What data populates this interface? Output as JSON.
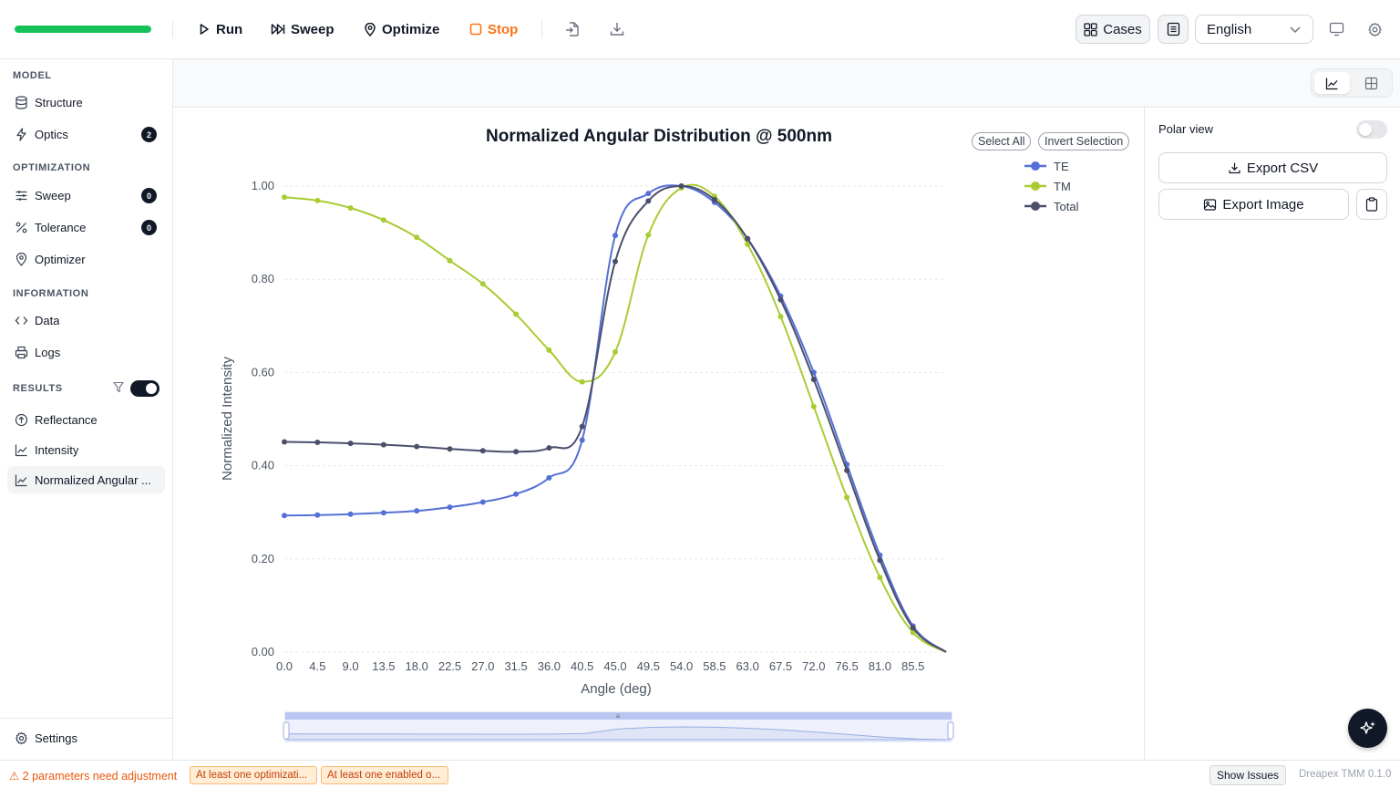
{
  "toolbar": {
    "progress": 1.0,
    "run": "Run",
    "sweep": "Sweep",
    "optimize": "Optimize",
    "stop": "Stop",
    "cases": "Cases",
    "language": "English",
    "stop_color": "#f97316",
    "progress_color": "#16c15a"
  },
  "sidebar": {
    "model_header": "MODEL",
    "structure": "Structure",
    "optics": "Optics",
    "optics_count": "2",
    "optimization_header": "OPTIMIZATION",
    "sweep": "Sweep",
    "sweep_count": "0",
    "tolerance": "Tolerance",
    "tolerance_count": "0",
    "optimizer": "Optimizer",
    "information_header": "INFORMATION",
    "data": "Data",
    "logs": "Logs",
    "results_header": "RESULTS",
    "results_toggle_on": true,
    "reflectance": "Reflectance",
    "intensity": "Intensity",
    "normalized": "Normalized Angular ...",
    "settings": "Settings"
  },
  "panel": {
    "polar_view": "Polar view",
    "polar_on": false,
    "export_csv": "Export CSV",
    "export_image": "Export Image"
  },
  "chart_controls": {
    "select_all": "Select All",
    "invert_selection": "Invert Selection"
  },
  "status": {
    "warning": "⚠ 2 parameters need adjustment",
    "chip1": "At least one optimizati...",
    "chip2": "At least one enabled o...",
    "show_issues": "Show Issues",
    "version": "Dreapex TMM 0.1.0"
  },
  "chart_data": {
    "type": "line",
    "title": "Normalized Angular Distribution @ 500nm",
    "xlabel": "Angle (deg)",
    "ylabel": "Normalized Intensity",
    "xlim": [
      0,
      90
    ],
    "ylim": [
      0,
      1
    ],
    "grid": true,
    "legend_position": "top-right",
    "x_ticks": [
      "0.0",
      "4.5",
      "9.0",
      "13.5",
      "18.0",
      "22.5",
      "27.0",
      "31.5",
      "36.0",
      "40.5",
      "45.0",
      "49.5",
      "54.0",
      "58.5",
      "63.0",
      "67.5",
      "72.0",
      "76.5",
      "81.0",
      "85.5"
    ],
    "y_ticks": [
      "0.00",
      "0.20",
      "0.40",
      "0.60",
      "0.80",
      "1.00"
    ],
    "x": [
      0,
      4.5,
      9,
      13.5,
      18,
      22.5,
      27,
      31.5,
      36,
      40.5,
      45,
      49.5,
      54,
      58.5,
      63,
      67.5,
      72,
      76.5,
      81,
      85.5,
      90
    ],
    "series": [
      {
        "name": "TE",
        "color": "#5470d6",
        "values": [
          0.293,
          0.294,
          0.296,
          0.299,
          0.303,
          0.311,
          0.322,
          0.339,
          0.374,
          0.455,
          0.894,
          0.984,
          1.0,
          0.965,
          0.887,
          0.764,
          0.6,
          0.403,
          0.208,
          0.056,
          0.0
        ]
      },
      {
        "name": "TM",
        "color": "#a9cc33",
        "values": [
          0.976,
          0.969,
          0.953,
          0.927,
          0.89,
          0.84,
          0.79,
          0.725,
          0.648,
          0.58,
          0.644,
          0.895,
          0.996,
          0.978,
          0.875,
          0.72,
          0.527,
          0.332,
          0.16,
          0.042,
          0.0
        ]
      },
      {
        "name": "Total",
        "color": "#4b4f6b",
        "values": [
          0.451,
          0.45,
          0.448,
          0.445,
          0.441,
          0.436,
          0.432,
          0.43,
          0.438,
          0.484,
          0.838,
          0.968,
          1.0,
          0.971,
          0.887,
          0.756,
          0.585,
          0.39,
          0.197,
          0.052,
          0.0
        ]
      }
    ]
  }
}
